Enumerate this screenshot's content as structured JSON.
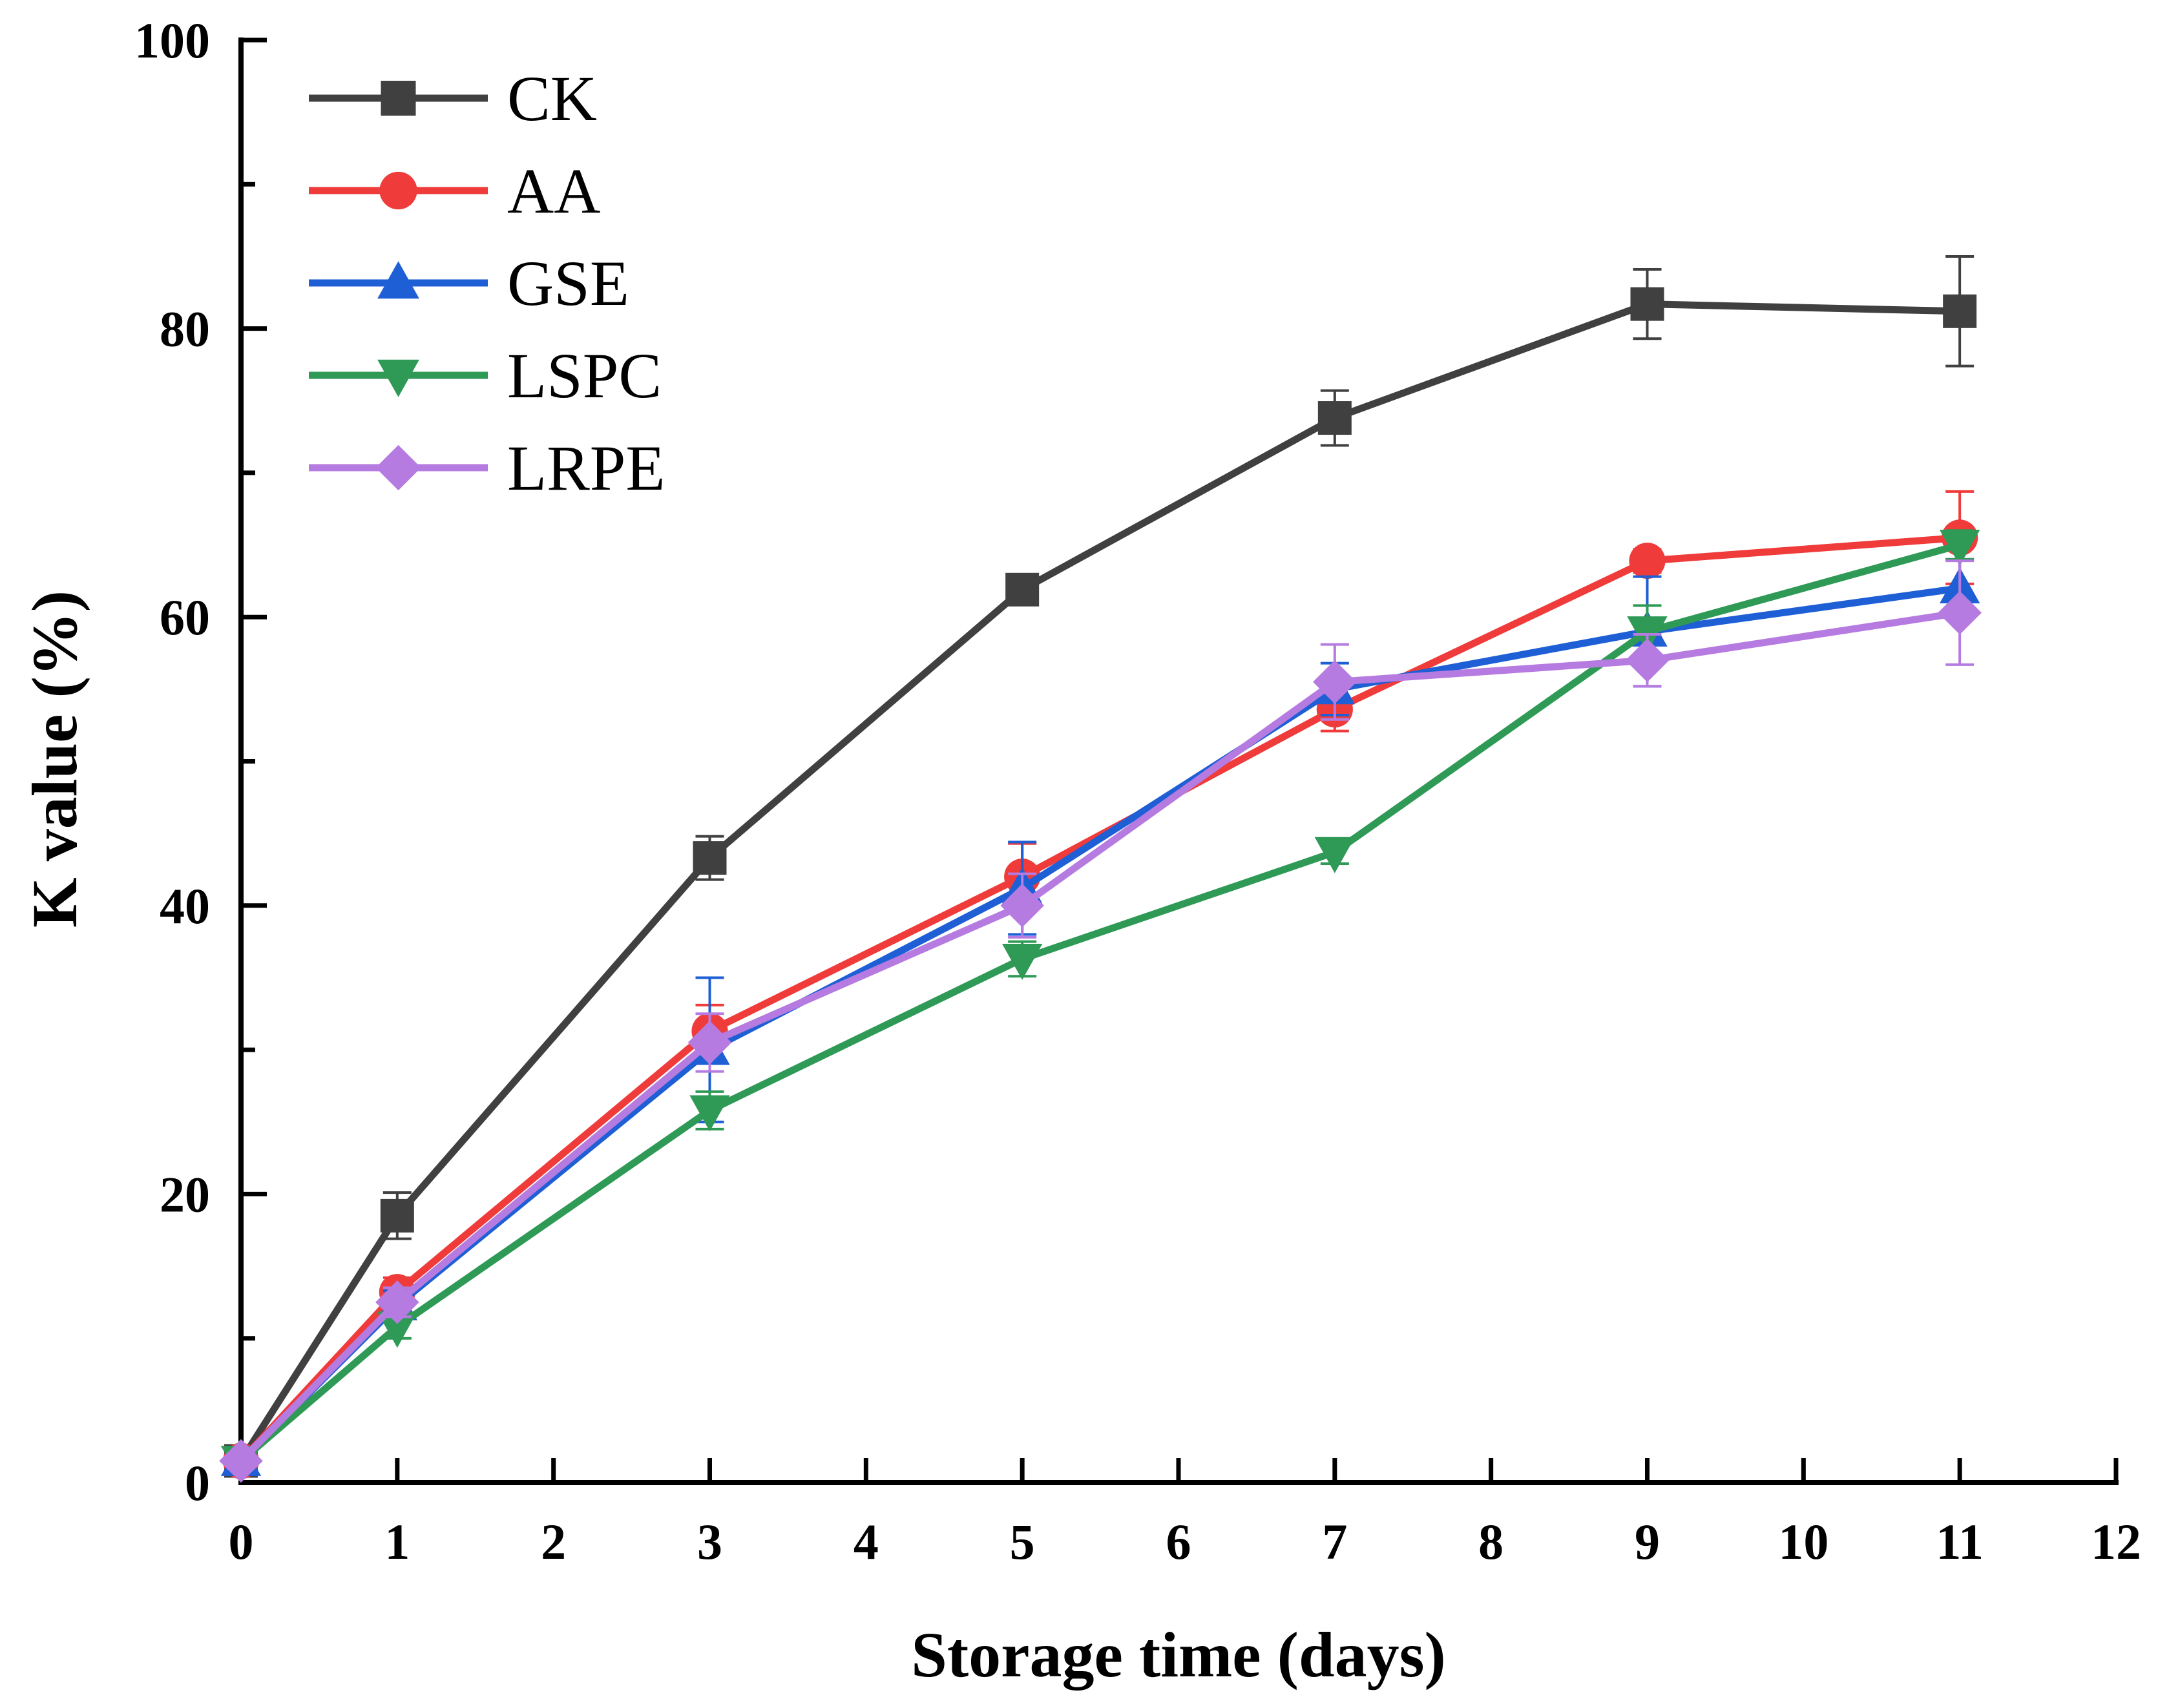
{
  "chart_data": {
    "type": "line",
    "title": "",
    "xlabel": "Storage time (days)",
    "ylabel": "K value (%)",
    "xlim": [
      0,
      12
    ],
    "ylim": [
      0,
      100
    ],
    "xticks": [
      0,
      1,
      2,
      3,
      4,
      5,
      6,
      7,
      8,
      9,
      10,
      11,
      12
    ],
    "yticks": [
      0,
      20,
      40,
      60,
      80,
      100
    ],
    "y_minor_step": 10,
    "legend_position": "top-left",
    "x": [
      0,
      1,
      3,
      5,
      7,
      9,
      11
    ],
    "series": [
      {
        "name": "CK",
        "color": "#404040",
        "marker": "square",
        "values": [
          1.5,
          18.5,
          43.3,
          61.9,
          73.8,
          81.7,
          81.2
        ],
        "errors": [
          0.5,
          1.6,
          1.5,
          1.0,
          1.9,
          2.4,
          3.8
        ]
      },
      {
        "name": "AA",
        "color": "#f03b3b",
        "marker": "circle",
        "values": [
          1.5,
          13.2,
          31.3,
          42.0,
          53.6,
          63.9,
          65.5
        ],
        "errors": [
          0.5,
          1.0,
          1.8,
          2.3,
          1.5,
          0.8,
          3.2
        ]
      },
      {
        "name": "GSE",
        "color": "#1f5fd6",
        "marker": "triangle-up",
        "values": [
          1.5,
          12.3,
          30.0,
          41.2,
          55.0,
          59.0,
          62.0
        ],
        "errors": [
          0.5,
          1.0,
          5.0,
          3.2,
          1.8,
          3.8,
          2.0
        ]
      },
      {
        "name": "LSPC",
        "color": "#2e9a56",
        "marker": "triangle-down",
        "values": [
          1.5,
          10.8,
          25.8,
          36.3,
          43.7,
          59.0,
          65.0
        ],
        "errors": [
          0.5,
          0.8,
          1.3,
          1.2,
          0.8,
          1.8,
          1.0
        ]
      },
      {
        "name": "LRPE",
        "color": "#b57be0",
        "marker": "diamond",
        "values": [
          1.5,
          12.5,
          30.5,
          40.0,
          55.5,
          57.0,
          60.3
        ],
        "errors": [
          0.5,
          1.0,
          2.0,
          2.2,
          2.6,
          1.8,
          3.6
        ]
      }
    ]
  }
}
